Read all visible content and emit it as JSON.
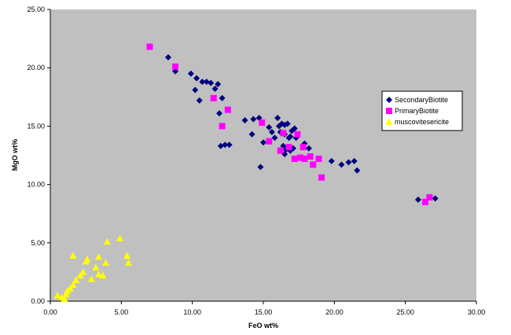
{
  "chart_data": {
    "type": "scatter",
    "title": "",
    "xlabel": "FeO wt%",
    "ylabel": "MgO wt%",
    "xlim": [
      0,
      30
    ],
    "ylim": [
      0,
      25
    ],
    "x_ticks": [
      "0.00",
      "5.00",
      "10.00",
      "15.00",
      "20.00",
      "25.00",
      "30.00"
    ],
    "y_ticks": [
      "0.00",
      "5.00",
      "10.00",
      "15.00",
      "20.00",
      "25.00"
    ],
    "grid": "horizontal major gridlines off; gray plot area",
    "legend_position": "right",
    "plot_background": "#c0c0c0",
    "series": [
      {
        "name": "SecondaryBiotite",
        "marker": "diamond",
        "color": "#000080",
        "points": [
          [
            8.3,
            20.9
          ],
          [
            8.8,
            19.7
          ],
          [
            9.9,
            19.5
          ],
          [
            10.3,
            19.1
          ],
          [
            10.7,
            18.8
          ],
          [
            11.0,
            18.8
          ],
          [
            11.3,
            18.7
          ],
          [
            11.8,
            18.6
          ],
          [
            11.6,
            18.2
          ],
          [
            10.2,
            18.1
          ],
          [
            10.5,
            17.2
          ],
          [
            12.1,
            17.4
          ],
          [
            11.9,
            16.1
          ],
          [
            13.7,
            15.5
          ],
          [
            14.3,
            15.6
          ],
          [
            14.7,
            15.7
          ],
          [
            15.4,
            14.9
          ],
          [
            15.6,
            14.5
          ],
          [
            15.8,
            14.0
          ],
          [
            16.0,
            15.7
          ],
          [
            16.1,
            15.0
          ],
          [
            16.3,
            15.2
          ],
          [
            16.5,
            15.1
          ],
          [
            16.7,
            15.2
          ],
          [
            16.2,
            14.5
          ],
          [
            16.5,
            14.3
          ],
          [
            16.8,
            14.0
          ],
          [
            17.0,
            14.6
          ],
          [
            17.2,
            14.8
          ],
          [
            16.9,
            14.1
          ],
          [
            17.3,
            14.0
          ],
          [
            14.2,
            14.3
          ],
          [
            15.0,
            13.6
          ],
          [
            16.4,
            13.3
          ],
          [
            16.6,
            13.0
          ],
          [
            17.1,
            13.1
          ],
          [
            17.9,
            13.5
          ],
          [
            18.2,
            13.1
          ],
          [
            16.5,
            12.6
          ],
          [
            16.9,
            12.9
          ],
          [
            12.0,
            13.3
          ],
          [
            12.3,
            13.4
          ],
          [
            12.6,
            13.4
          ],
          [
            14.8,
            11.5
          ],
          [
            19.8,
            12.0
          ],
          [
            20.5,
            11.7
          ],
          [
            21.0,
            11.9
          ],
          [
            21.4,
            12.0
          ],
          [
            21.6,
            11.2
          ],
          [
            25.9,
            8.7
          ],
          [
            27.1,
            8.8
          ]
        ]
      },
      {
        "name": "PrimaryBiotite",
        "marker": "square",
        "color": "#ff00ff",
        "points": [
          [
            7.0,
            21.8
          ],
          [
            8.8,
            20.1
          ],
          [
            11.5,
            17.4
          ],
          [
            12.5,
            16.4
          ],
          [
            12.1,
            15.0
          ],
          [
            14.9,
            15.3
          ],
          [
            16.4,
            14.4
          ],
          [
            17.4,
            14.3
          ],
          [
            15.4,
            13.7
          ],
          [
            16.2,
            12.9
          ],
          [
            16.8,
            13.2
          ],
          [
            17.8,
            13.2
          ],
          [
            17.2,
            12.2
          ],
          [
            17.6,
            12.3
          ],
          [
            17.9,
            12.2
          ],
          [
            18.3,
            12.4
          ],
          [
            18.9,
            12.2
          ],
          [
            18.5,
            11.7
          ],
          [
            19.1,
            10.6
          ],
          [
            26.4,
            8.5
          ],
          [
            26.7,
            8.9
          ]
        ]
      },
      {
        "name": "muscovitesericite",
        "marker": "triangle",
        "color": "#ffff00",
        "points": [
          [
            0.5,
            0.5
          ],
          [
            0.8,
            0.3
          ],
          [
            1.0,
            0.2
          ],
          [
            1.1,
            0.6
          ],
          [
            1.2,
            0.9
          ],
          [
            1.4,
            1.1
          ],
          [
            1.6,
            1.4
          ],
          [
            1.8,
            1.8
          ],
          [
            1.6,
            3.9
          ],
          [
            2.1,
            2.2
          ],
          [
            2.3,
            2.5
          ],
          [
            2.5,
            3.4
          ],
          [
            2.6,
            3.6
          ],
          [
            2.9,
            1.9
          ],
          [
            3.2,
            2.9
          ],
          [
            3.4,
            2.3
          ],
          [
            3.4,
            3.8
          ],
          [
            3.7,
            2.2
          ],
          [
            3.9,
            3.3
          ],
          [
            4.0,
            5.1
          ],
          [
            4.9,
            5.4
          ],
          [
            5.4,
            3.9
          ],
          [
            5.5,
            3.3
          ]
        ]
      }
    ]
  }
}
